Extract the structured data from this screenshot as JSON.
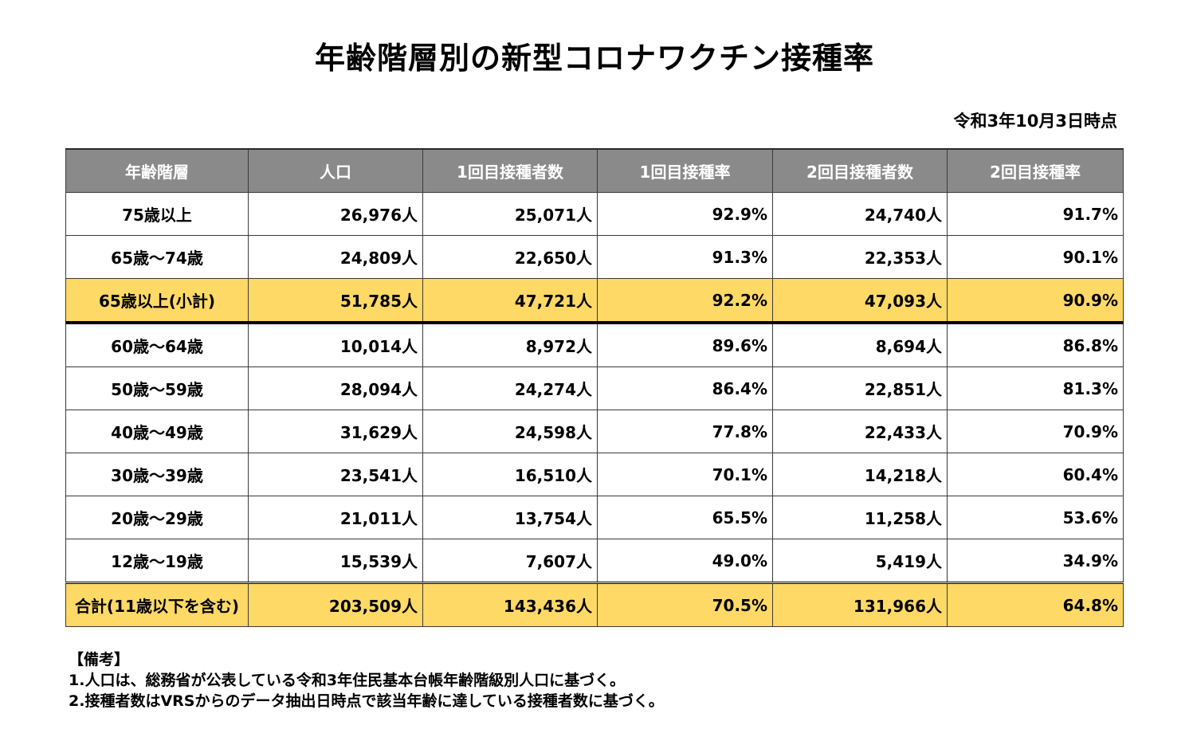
{
  "title": "年齢階層別の新型コロナワクチン接種率",
  "as_of": "令和3年10月3日時点",
  "table": {
    "headers": [
      "年齢階層",
      "人口",
      "1回目接種者数",
      "1回目接種率",
      "2回目接種者数",
      "2回目接種率"
    ],
    "rows": [
      [
        "75歳以上",
        "26,976人",
        "25,071人",
        "92.9%",
        "24,740人",
        "91.7%"
      ],
      [
        "65歳～74歳",
        "24,809人",
        "22,650人",
        "91.3%",
        "22,353人",
        "90.1%"
      ],
      [
        "65歳以上(小計)",
        "51,785人",
        "47,721人",
        "92.2%",
        "47,093人",
        "90.9%"
      ],
      [
        "60歳～64歳",
        "10,014人",
        "8,972人",
        "89.6%",
        "8,694人",
        "86.8%"
      ],
      [
        "50歳～59歳",
        "28,094人",
        "24,274人",
        "86.4%",
        "22,851人",
        "81.3%"
      ],
      [
        "40歳～49歳",
        "31,629人",
        "24,598人",
        "77.8%",
        "22,433人",
        "70.9%"
      ],
      [
        "30歳～39歳",
        "23,541人",
        "16,510人",
        "70.1%",
        "14,218人",
        "60.4%"
      ],
      [
        "20歳～29歳",
        "21,011人",
        "13,754人",
        "65.5%",
        "11,258人",
        "53.6%"
      ],
      [
        "12歳～19歳",
        "15,539人",
        "7,607人",
        "49.0%",
        "5,419人",
        "34.9%"
      ],
      [
        "合計(11歳以下を含む)",
        "203,509人",
        "143,436人",
        "70.5%",
        "131,966人",
        "64.8%"
      ]
    ]
  },
  "notes": {
    "heading": "【備考】",
    "lines": [
      "1.人口は、総務省が公表している令和3年住民基本台帳年齢階級別人口に基づく。",
      "2.接種者数はVRSからのデータ抽出日時点で該当年齢に達している接種者数に基づく。"
    ]
  },
  "colors": {
    "header_bg": "#8a8a8a",
    "header_text": "#ffffff",
    "highlight_bg": "#ffd966"
  }
}
